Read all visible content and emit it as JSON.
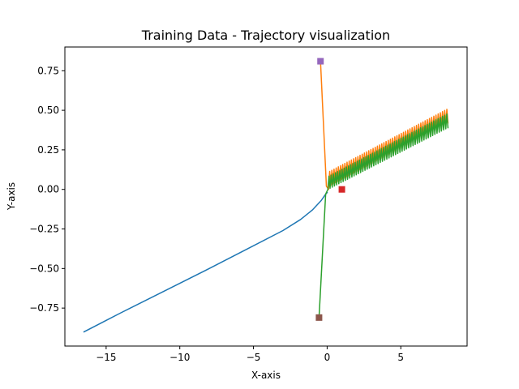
{
  "chart_data": {
    "type": "line",
    "title": "Training Data - Trajectory visualization",
    "xlabel": "X-axis",
    "ylabel": "Y-axis",
    "xlim": [
      -17.8,
      9.5
    ],
    "ylim": [
      -0.99,
      0.9
    ],
    "grid": false,
    "x_ticks": [
      {
        "value": -15,
        "label": "−15"
      },
      {
        "value": -10,
        "label": "−10"
      },
      {
        "value": -5,
        "label": "−5"
      },
      {
        "value": 0,
        "label": "0"
      },
      {
        "value": 5,
        "label": "5"
      }
    ],
    "y_ticks": [
      {
        "value": -0.75,
        "label": "−0.75"
      },
      {
        "value": -0.5,
        "label": "−0.50"
      },
      {
        "value": -0.25,
        "label": "−0.25"
      },
      {
        "value": 0.0,
        "label": "0.00"
      },
      {
        "value": 0.25,
        "label": "0.25"
      },
      {
        "value": 0.5,
        "label": "0.50"
      },
      {
        "value": 0.75,
        "label": "0.75"
      }
    ],
    "series": [
      {
        "color": "#1f77b4",
        "x": [
          -16.5,
          -14.0,
          -11.0,
          -8.0,
          -5.5,
          -3.0,
          -1.8,
          -1.0,
          -0.6,
          -0.4,
          -0.25,
          -0.1,
          0.0
        ],
        "y": [
          -0.9,
          -0.78,
          -0.64,
          -0.5,
          -0.38,
          -0.26,
          -0.19,
          -0.13,
          -0.09,
          -0.07,
          -0.05,
          -0.03,
          -0.02
        ]
      },
      {
        "color": "#ff7f0e",
        "x": [
          -0.45,
          -0.05,
          0.1
        ],
        "y": [
          0.81,
          0.02,
          0.0
        ],
        "oscillation": {
          "x_start": 0.1,
          "x_end": 8.2,
          "y_low_start": 0.02,
          "y_low_end": 0.42,
          "y_high_start": 0.11,
          "y_high_end": 0.51,
          "cycles": 55
        }
      },
      {
        "color": "#2ca02c",
        "x": [
          -0.55,
          -0.1,
          0.05
        ],
        "y": [
          -0.81,
          -0.03,
          0.0
        ],
        "oscillation": {
          "x_start": 0.05,
          "x_end": 8.2,
          "y_low_start": 0.0,
          "y_low_end": 0.39,
          "y_high_start": 0.08,
          "y_high_end": 0.48,
          "cycles": 55
        }
      }
    ],
    "markers": [
      {
        "name": "purple-marker",
        "x": -0.45,
        "y": 0.81,
        "color": "#9467bd"
      },
      {
        "name": "red-marker",
        "x": 1.0,
        "y": 0.0,
        "color": "#d62728"
      },
      {
        "name": "brown-marker",
        "x": -0.55,
        "y": -0.81,
        "color": "#8c564b"
      }
    ]
  }
}
